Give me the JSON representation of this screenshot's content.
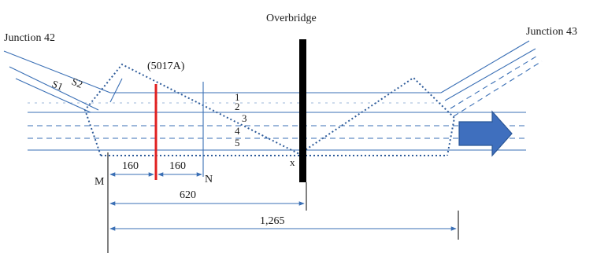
{
  "labels": {
    "overbridge": "Overbridge",
    "junction_left": "Junction 42",
    "junction_right": "Junction 43",
    "signal_id": "(5017A)",
    "s1": "S1",
    "s2": "S2",
    "track_1": "1",
    "track_2": "2",
    "track_3": "3",
    "track_4": "4",
    "track_5": "5",
    "point_m": "M",
    "point_n": "N",
    "point_x": "x"
  },
  "dimensions": {
    "m_to_signal": "160",
    "signal_to_n": "160",
    "m_to_overbridge": "620",
    "m_to_end": "1,265"
  },
  "colors": {
    "track": "#3a6fb5",
    "zone_outline": "#2f5c9a",
    "signal_line": "#e02020",
    "overbridge": "#000000",
    "direction_arrow": "#3f6fbe"
  },
  "icons": {
    "direction": "right-arrow-icon"
  }
}
